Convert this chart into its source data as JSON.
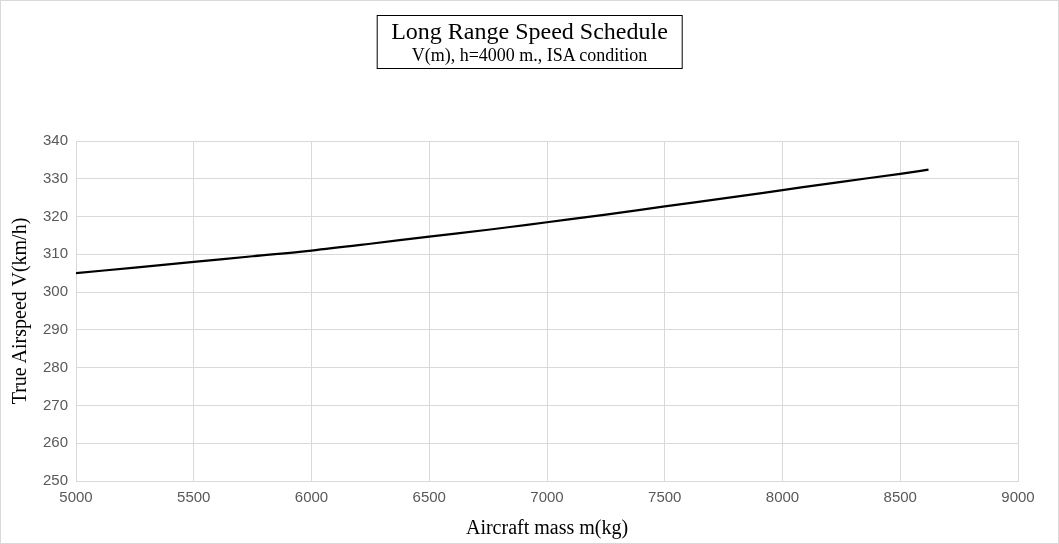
{
  "chart_data": {
    "type": "line",
    "title": "Long Range Speed Schedule",
    "subtitle": "V(m), h=4000 m., ISA condition",
    "xlabel": "Aircraft mass m(kg)",
    "ylabel": "True Airspeed V(km/h)",
    "x": [
      5000,
      5250,
      5500,
      5750,
      6000,
      6250,
      6500,
      6750,
      7000,
      7250,
      7500,
      7750,
      8000,
      8250,
      8500,
      8620
    ],
    "series": [
      {
        "color": "#000000",
        "values": [
          305,
          306.5,
          308,
          309.5,
          311,
          312.8,
          314.7,
          316.5,
          318.5,
          320.5,
          322.7,
          324.8,
          327,
          329.2,
          331.3,
          332.4
        ]
      }
    ],
    "xlim": [
      5000,
      9000
    ],
    "xticks": [
      5000,
      5500,
      6000,
      6500,
      7000,
      7500,
      8000,
      8500,
      9000
    ],
    "ylim": [
      250,
      340
    ],
    "yticks": [
      250,
      260,
      270,
      280,
      290,
      300,
      310,
      320,
      330,
      340
    ],
    "grid": true,
    "legend": false,
    "marker": "none",
    "line_style": "solid"
  }
}
